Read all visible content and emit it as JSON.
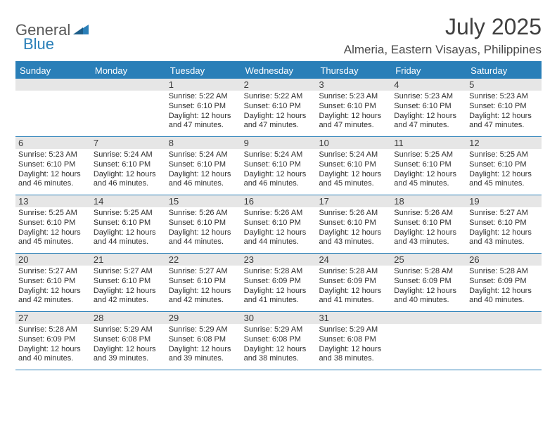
{
  "brand": {
    "word1": "General",
    "word2": "Blue"
  },
  "colors": {
    "brand_blue": "#2a7fb8",
    "header_text": "#404040",
    "body_text": "#3a3a3a",
    "daynum_bg": "#e6e6e6",
    "background": "#ffffff",
    "dow_text": "#ffffff"
  },
  "typography": {
    "title_fontsize": 32,
    "location_fontsize": 17,
    "dow_fontsize": 13,
    "daynum_fontsize": 13,
    "body_fontsize": 11,
    "logo_fontsize": 22
  },
  "header": {
    "month_title": "July 2025",
    "location": "Almeria, Eastern Visayas, Philippines"
  },
  "calendar": {
    "type": "table",
    "columns": 7,
    "dow": [
      "Sunday",
      "Monday",
      "Tuesday",
      "Wednesday",
      "Thursday",
      "Friday",
      "Saturday"
    ],
    "weeks": [
      [
        {
          "n": ""
        },
        {
          "n": ""
        },
        {
          "n": "1",
          "sr": "Sunrise: 5:22 AM",
          "ss": "Sunset: 6:10 PM",
          "dl": "Daylight: 12 hours and 47 minutes."
        },
        {
          "n": "2",
          "sr": "Sunrise: 5:22 AM",
          "ss": "Sunset: 6:10 PM",
          "dl": "Daylight: 12 hours and 47 minutes."
        },
        {
          "n": "3",
          "sr": "Sunrise: 5:23 AM",
          "ss": "Sunset: 6:10 PM",
          "dl": "Daylight: 12 hours and 47 minutes."
        },
        {
          "n": "4",
          "sr": "Sunrise: 5:23 AM",
          "ss": "Sunset: 6:10 PM",
          "dl": "Daylight: 12 hours and 47 minutes."
        },
        {
          "n": "5",
          "sr": "Sunrise: 5:23 AM",
          "ss": "Sunset: 6:10 PM",
          "dl": "Daylight: 12 hours and 47 minutes."
        }
      ],
      [
        {
          "n": "6",
          "sr": "Sunrise: 5:23 AM",
          "ss": "Sunset: 6:10 PM",
          "dl": "Daylight: 12 hours and 46 minutes."
        },
        {
          "n": "7",
          "sr": "Sunrise: 5:24 AM",
          "ss": "Sunset: 6:10 PM",
          "dl": "Daylight: 12 hours and 46 minutes."
        },
        {
          "n": "8",
          "sr": "Sunrise: 5:24 AM",
          "ss": "Sunset: 6:10 PM",
          "dl": "Daylight: 12 hours and 46 minutes."
        },
        {
          "n": "9",
          "sr": "Sunrise: 5:24 AM",
          "ss": "Sunset: 6:10 PM",
          "dl": "Daylight: 12 hours and 46 minutes."
        },
        {
          "n": "10",
          "sr": "Sunrise: 5:24 AM",
          "ss": "Sunset: 6:10 PM",
          "dl": "Daylight: 12 hours and 45 minutes."
        },
        {
          "n": "11",
          "sr": "Sunrise: 5:25 AM",
          "ss": "Sunset: 6:10 PM",
          "dl": "Daylight: 12 hours and 45 minutes."
        },
        {
          "n": "12",
          "sr": "Sunrise: 5:25 AM",
          "ss": "Sunset: 6:10 PM",
          "dl": "Daylight: 12 hours and 45 minutes."
        }
      ],
      [
        {
          "n": "13",
          "sr": "Sunrise: 5:25 AM",
          "ss": "Sunset: 6:10 PM",
          "dl": "Daylight: 12 hours and 45 minutes."
        },
        {
          "n": "14",
          "sr": "Sunrise: 5:25 AM",
          "ss": "Sunset: 6:10 PM",
          "dl": "Daylight: 12 hours and 44 minutes."
        },
        {
          "n": "15",
          "sr": "Sunrise: 5:26 AM",
          "ss": "Sunset: 6:10 PM",
          "dl": "Daylight: 12 hours and 44 minutes."
        },
        {
          "n": "16",
          "sr": "Sunrise: 5:26 AM",
          "ss": "Sunset: 6:10 PM",
          "dl": "Daylight: 12 hours and 44 minutes."
        },
        {
          "n": "17",
          "sr": "Sunrise: 5:26 AM",
          "ss": "Sunset: 6:10 PM",
          "dl": "Daylight: 12 hours and 43 minutes."
        },
        {
          "n": "18",
          "sr": "Sunrise: 5:26 AM",
          "ss": "Sunset: 6:10 PM",
          "dl": "Daylight: 12 hours and 43 minutes."
        },
        {
          "n": "19",
          "sr": "Sunrise: 5:27 AM",
          "ss": "Sunset: 6:10 PM",
          "dl": "Daylight: 12 hours and 43 minutes."
        }
      ],
      [
        {
          "n": "20",
          "sr": "Sunrise: 5:27 AM",
          "ss": "Sunset: 6:10 PM",
          "dl": "Daylight: 12 hours and 42 minutes."
        },
        {
          "n": "21",
          "sr": "Sunrise: 5:27 AM",
          "ss": "Sunset: 6:10 PM",
          "dl": "Daylight: 12 hours and 42 minutes."
        },
        {
          "n": "22",
          "sr": "Sunrise: 5:27 AM",
          "ss": "Sunset: 6:10 PM",
          "dl": "Daylight: 12 hours and 42 minutes."
        },
        {
          "n": "23",
          "sr": "Sunrise: 5:28 AM",
          "ss": "Sunset: 6:09 PM",
          "dl": "Daylight: 12 hours and 41 minutes."
        },
        {
          "n": "24",
          "sr": "Sunrise: 5:28 AM",
          "ss": "Sunset: 6:09 PM",
          "dl": "Daylight: 12 hours and 41 minutes."
        },
        {
          "n": "25",
          "sr": "Sunrise: 5:28 AM",
          "ss": "Sunset: 6:09 PM",
          "dl": "Daylight: 12 hours and 40 minutes."
        },
        {
          "n": "26",
          "sr": "Sunrise: 5:28 AM",
          "ss": "Sunset: 6:09 PM",
          "dl": "Daylight: 12 hours and 40 minutes."
        }
      ],
      [
        {
          "n": "27",
          "sr": "Sunrise: 5:28 AM",
          "ss": "Sunset: 6:09 PM",
          "dl": "Daylight: 12 hours and 40 minutes."
        },
        {
          "n": "28",
          "sr": "Sunrise: 5:29 AM",
          "ss": "Sunset: 6:08 PM",
          "dl": "Daylight: 12 hours and 39 minutes."
        },
        {
          "n": "29",
          "sr": "Sunrise: 5:29 AM",
          "ss": "Sunset: 6:08 PM",
          "dl": "Daylight: 12 hours and 39 minutes."
        },
        {
          "n": "30",
          "sr": "Sunrise: 5:29 AM",
          "ss": "Sunset: 6:08 PM",
          "dl": "Daylight: 12 hours and 38 minutes."
        },
        {
          "n": "31",
          "sr": "Sunrise: 5:29 AM",
          "ss": "Sunset: 6:08 PM",
          "dl": "Daylight: 12 hours and 38 minutes."
        },
        {
          "n": ""
        },
        {
          "n": ""
        }
      ]
    ]
  }
}
